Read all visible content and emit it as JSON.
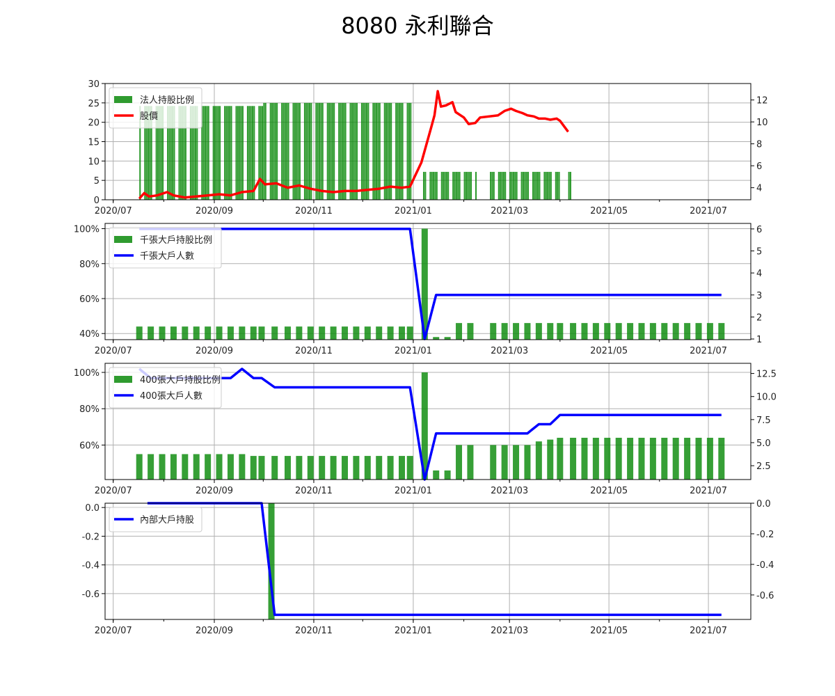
{
  "title": "8080 永利聯合",
  "colors": {
    "bar": "#0a8a0a",
    "price": "#ff0000",
    "holders": "#0000ff",
    "grid": "#b0b0b0"
  },
  "chart_data": [
    {
      "type": "bar",
      "x_ticks": [
        "2020/07",
        "2020/09",
        "2020/11",
        "2021/01",
        "2021/03",
        "2021/05",
        "2021/07"
      ],
      "xlim": [
        "2020-06-26",
        "2021-07-27"
      ],
      "y_left": {
        "ylim": [
          0,
          30
        ],
        "ticks": [
          "0",
          "5",
          "10",
          "15",
          "20",
          "25",
          "30"
        ]
      },
      "y_right": {
        "ylim": [
          2.9,
          13.5
        ],
        "ticks": [
          "4",
          "6",
          "8",
          "10",
          "12"
        ]
      },
      "legend": {
        "position": "upper-left",
        "entries": [
          "法人持股比例",
          "股價"
        ]
      },
      "bar_series": {
        "name": "法人持股比例",
        "segments": [
          {
            "from": "2020-07-17",
            "to": "2020-09-30",
            "value": 24.2
          },
          {
            "from": "2020-10-01",
            "to": "2020-12-30",
            "value": 25.0
          },
          {
            "from": "2021-01-07",
            "to": "2021-02-08",
            "value": 7.2
          },
          {
            "from": "2021-02-17",
            "to": "2021-03-31",
            "value": 7.2
          },
          {
            "from": "2021-04-06",
            "to": "2021-04-07",
            "value": 7.2
          }
        ]
      },
      "line_series": {
        "name": "股價",
        "points": [
          [
            "2020-07-17",
            3.0
          ],
          [
            "2020-07-20",
            3.5
          ],
          [
            "2020-07-23",
            3.2
          ],
          [
            "2020-07-28",
            3.3
          ],
          [
            "2020-08-03",
            3.6
          ],
          [
            "2020-08-07",
            3.3
          ],
          [
            "2020-08-14",
            3.1
          ],
          [
            "2020-08-21",
            3.2
          ],
          [
            "2020-08-28",
            3.3
          ],
          [
            "2020-09-04",
            3.4
          ],
          [
            "2020-09-11",
            3.3
          ],
          [
            "2020-09-18",
            3.6
          ],
          [
            "2020-09-25",
            3.7
          ],
          [
            "2020-09-29",
            4.8
          ],
          [
            "2020-10-02",
            4.3
          ],
          [
            "2020-10-09",
            4.4
          ],
          [
            "2020-10-16",
            4.0
          ],
          [
            "2020-10-23",
            4.2
          ],
          [
            "2020-10-30",
            3.9
          ],
          [
            "2020-11-06",
            3.7
          ],
          [
            "2020-11-13",
            3.6
          ],
          [
            "2020-11-20",
            3.7
          ],
          [
            "2020-11-27",
            3.7
          ],
          [
            "2020-12-04",
            3.8
          ],
          [
            "2020-12-11",
            3.9
          ],
          [
            "2020-12-18",
            4.1
          ],
          [
            "2020-12-25",
            4.0
          ],
          [
            "2020-12-30",
            4.1
          ],
          [
            "2021-01-06",
            6.3
          ],
          [
            "2021-01-12",
            9.5
          ],
          [
            "2021-01-14",
            10.6
          ],
          [
            "2021-01-16",
            12.8
          ],
          [
            "2021-01-18",
            11.4
          ],
          [
            "2021-01-21",
            11.5
          ],
          [
            "2021-01-25",
            11.8
          ],
          [
            "2021-01-27",
            10.9
          ],
          [
            "2021-02-01",
            10.4
          ],
          [
            "2021-02-04",
            9.8
          ],
          [
            "2021-02-08",
            9.9
          ],
          [
            "2021-02-11",
            10.4
          ],
          [
            "2021-02-22",
            10.6
          ],
          [
            "2021-02-26",
            11.0
          ],
          [
            "2021-03-02",
            11.2
          ],
          [
            "2021-03-05",
            11.0
          ],
          [
            "2021-03-09",
            10.8
          ],
          [
            "2021-03-12",
            10.6
          ],
          [
            "2021-03-16",
            10.5
          ],
          [
            "2021-03-19",
            10.3
          ],
          [
            "2021-03-23",
            10.3
          ],
          [
            "2021-03-26",
            10.2
          ],
          [
            "2021-03-30",
            10.3
          ],
          [
            "2021-04-01",
            10.1
          ],
          [
            "2021-04-06",
            9.1
          ]
        ]
      }
    },
    {
      "type": "bar",
      "x_ticks": [
        "2020/07",
        "2020/09",
        "2020/11",
        "2021/01",
        "2021/03",
        "2021/05",
        "2021/07"
      ],
      "xlim": [
        "2020-06-26",
        "2021-07-27"
      ],
      "y_left": {
        "ylim": [
          36.5,
          103
        ],
        "ticks": [
          "40%",
          "60%",
          "80%",
          "100%"
        ]
      },
      "y_right": {
        "ylim": [
          0.97,
          6.25
        ],
        "ticks": [
          "1",
          "2",
          "3",
          "4",
          "5",
          "6"
        ]
      },
      "legend": {
        "position": "upper-left",
        "entries": [
          "千張大戶持股比例",
          "千張大戶人數"
        ]
      },
      "bar_series": {
        "name": "千張大戶持股比例",
        "points": [
          [
            "2020-07-17",
            44
          ],
          [
            "2020-07-24",
            44
          ],
          [
            "2020-07-31",
            44
          ],
          [
            "2020-08-07",
            44
          ],
          [
            "2020-08-14",
            44
          ],
          [
            "2020-08-21",
            44
          ],
          [
            "2020-08-28",
            44
          ],
          [
            "2020-09-04",
            44
          ],
          [
            "2020-09-11",
            44
          ],
          [
            "2020-09-18",
            44
          ],
          [
            "2020-09-25",
            44
          ],
          [
            "2020-09-30",
            44
          ],
          [
            "2020-10-08",
            44
          ],
          [
            "2020-10-16",
            44
          ],
          [
            "2020-10-23",
            44
          ],
          [
            "2020-10-30",
            44
          ],
          [
            "2020-11-06",
            44
          ],
          [
            "2020-11-13",
            44
          ],
          [
            "2020-11-20",
            44
          ],
          [
            "2020-11-27",
            44
          ],
          [
            "2020-12-04",
            44
          ],
          [
            "2020-12-11",
            44
          ],
          [
            "2020-12-18",
            44
          ],
          [
            "2020-12-25",
            44
          ],
          [
            "2020-12-30",
            44
          ],
          [
            "2021-01-08",
            100
          ],
          [
            "2021-01-15",
            38
          ],
          [
            "2021-01-22",
            38
          ],
          [
            "2021-01-29",
            46
          ],
          [
            "2021-02-05",
            46
          ],
          [
            "2021-02-19",
            46
          ],
          [
            "2021-02-26",
            46
          ],
          [
            "2021-03-05",
            46
          ],
          [
            "2021-03-12",
            46
          ],
          [
            "2021-03-19",
            46
          ],
          [
            "2021-03-26",
            46
          ],
          [
            "2021-04-01",
            46
          ],
          [
            "2021-04-09",
            46
          ],
          [
            "2021-04-16",
            46
          ],
          [
            "2021-04-23",
            46
          ],
          [
            "2021-04-30",
            46
          ],
          [
            "2021-05-07",
            46
          ],
          [
            "2021-05-14",
            46
          ],
          [
            "2021-05-21",
            46
          ],
          [
            "2021-05-28",
            46
          ],
          [
            "2021-06-04",
            46
          ],
          [
            "2021-06-11",
            46
          ],
          [
            "2021-06-18",
            46
          ],
          [
            "2021-06-25",
            46
          ],
          [
            "2021-07-02",
            46
          ],
          [
            "2021-07-09",
            46
          ]
        ]
      },
      "line_series": {
        "name": "千張大戶人數",
        "points": [
          [
            "2020-07-17",
            6
          ],
          [
            "2020-12-30",
            6
          ],
          [
            "2021-01-08",
            1
          ],
          [
            "2021-01-15",
            3
          ],
          [
            "2021-07-09",
            3
          ]
        ]
      }
    },
    {
      "type": "bar",
      "x_ticks": [
        "2020/07",
        "2020/09",
        "2020/11",
        "2021/01",
        "2021/03",
        "2021/05",
        "2021/07"
      ],
      "xlim": [
        "2020-06-26",
        "2021-07-27"
      ],
      "y_left": {
        "ylim": [
          41,
          105
        ],
        "ticks": [
          "60%",
          "80%",
          "100%"
        ]
      },
      "y_right": {
        "ylim": [
          1.0,
          13.6
        ],
        "ticks": [
          "2.5",
          "5.0",
          "7.5",
          "10.0",
          "12.5"
        ]
      },
      "legend": {
        "position": "upper-left",
        "entries": [
          "400張大戶持股比例",
          "400張大戶人數"
        ]
      },
      "bar_series": {
        "name": "400張大戶持股比例",
        "points": [
          [
            "2020-07-17",
            55
          ],
          [
            "2020-07-24",
            55
          ],
          [
            "2020-07-31",
            55
          ],
          [
            "2020-08-07",
            55
          ],
          [
            "2020-08-14",
            55
          ],
          [
            "2020-08-21",
            55
          ],
          [
            "2020-08-28",
            55
          ],
          [
            "2020-09-04",
            55
          ],
          [
            "2020-09-11",
            55
          ],
          [
            "2020-09-18",
            55
          ],
          [
            "2020-09-25",
            54
          ],
          [
            "2020-09-30",
            54
          ],
          [
            "2020-10-08",
            54
          ],
          [
            "2020-10-16",
            54
          ],
          [
            "2020-10-23",
            54
          ],
          [
            "2020-10-30",
            54
          ],
          [
            "2020-11-06",
            54
          ],
          [
            "2020-11-13",
            54
          ],
          [
            "2020-11-20",
            54
          ],
          [
            "2020-11-27",
            54
          ],
          [
            "2020-12-04",
            54
          ],
          [
            "2020-12-11",
            54
          ],
          [
            "2020-12-18",
            54
          ],
          [
            "2020-12-25",
            54
          ],
          [
            "2020-12-30",
            54
          ],
          [
            "2021-01-08",
            100
          ],
          [
            "2021-01-15",
            46
          ],
          [
            "2021-01-22",
            46
          ],
          [
            "2021-01-29",
            60
          ],
          [
            "2021-02-05",
            60
          ],
          [
            "2021-02-19",
            60
          ],
          [
            "2021-02-26",
            60
          ],
          [
            "2021-03-05",
            60
          ],
          [
            "2021-03-12",
            60
          ],
          [
            "2021-03-19",
            62
          ],
          [
            "2021-03-26",
            63
          ],
          [
            "2021-04-01",
            64
          ],
          [
            "2021-04-09",
            64
          ],
          [
            "2021-04-16",
            64
          ],
          [
            "2021-04-23",
            64
          ],
          [
            "2021-04-30",
            64
          ],
          [
            "2021-05-07",
            64
          ],
          [
            "2021-05-14",
            64
          ],
          [
            "2021-05-21",
            64
          ],
          [
            "2021-05-28",
            64
          ],
          [
            "2021-06-04",
            64
          ],
          [
            "2021-06-11",
            64
          ],
          [
            "2021-06-18",
            64
          ],
          [
            "2021-06-25",
            64
          ],
          [
            "2021-07-02",
            64
          ],
          [
            "2021-07-09",
            64
          ]
        ]
      },
      "line_series": {
        "name": "400張大戶人數",
        "points": [
          [
            "2020-07-17",
            13
          ],
          [
            "2020-07-24",
            12
          ],
          [
            "2020-09-11",
            12
          ],
          [
            "2020-09-18",
            13
          ],
          [
            "2020-09-25",
            12
          ],
          [
            "2020-09-30",
            12
          ],
          [
            "2020-10-08",
            11
          ],
          [
            "2020-12-30",
            11
          ],
          [
            "2021-01-08",
            1
          ],
          [
            "2021-01-15",
            6
          ],
          [
            "2021-03-12",
            6
          ],
          [
            "2021-03-19",
            7
          ],
          [
            "2021-03-26",
            7
          ],
          [
            "2021-04-01",
            8
          ],
          [
            "2021-07-09",
            8
          ]
        ]
      }
    },
    {
      "type": "bar",
      "x_ticks": [
        "2020/07",
        "2020/09",
        "2020/11",
        "2021/01",
        "2021/03",
        "2021/05",
        "2021/07"
      ],
      "xlim": [
        "2020-06-26",
        "2021-07-27"
      ],
      "y_left": {
        "ylim": [
          -0.78,
          0.03
        ],
        "ticks": [
          "-0.6",
          "-0.4",
          "-0.2",
          "0.0"
        ]
      },
      "y_right": {
        "ylim": [
          -0.76,
          0.0
        ],
        "ticks": [
          "-0.6",
          "-0.4",
          "-0.2",
          "0.0"
        ]
      },
      "legend": {
        "position": "upper-left",
        "entries": [
          "內部大戶持股"
        ]
      },
      "bar_series": {
        "name": "",
        "points": [
          [
            "2020-10-06",
            0.03
          ]
        ]
      },
      "line_series": {
        "name": "內部大戶持股",
        "points": [
          [
            "2020-07-22",
            0.0
          ],
          [
            "2020-09-30",
            0.0
          ],
          [
            "2020-10-08",
            -0.73
          ],
          [
            "2021-07-09",
            -0.73
          ]
        ]
      }
    }
  ]
}
